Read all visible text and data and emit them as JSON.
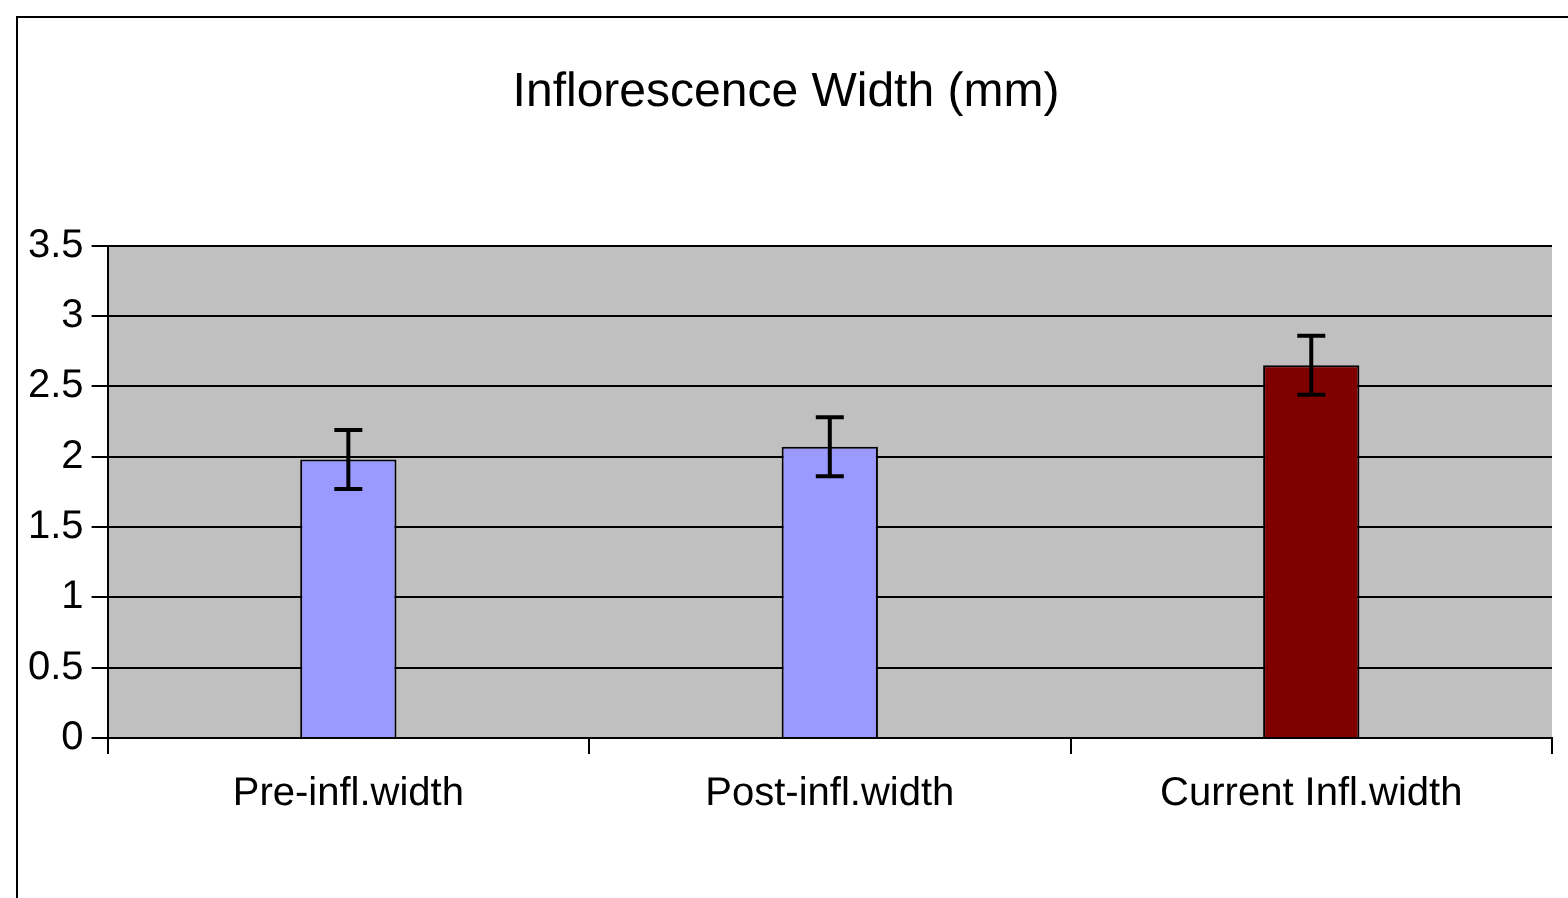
{
  "chart_data": {
    "type": "bar",
    "title": "Inflorescence Width (mm)",
    "categories": [
      "Pre-infl.width",
      "Post-infl.width",
      "Current Infl.width"
    ],
    "values": [
      1.98,
      2.07,
      2.65
    ],
    "colors": [
      "#9999ff",
      "#9999ff",
      "#800000"
    ],
    "errors": [
      0.21,
      0.21,
      0.21
    ],
    "ylim": [
      0,
      3.5
    ],
    "yticks": [
      0,
      0.5,
      1,
      1.5,
      2,
      2.5,
      3,
      3.5
    ],
    "grid": "y",
    "legend": false
  }
}
